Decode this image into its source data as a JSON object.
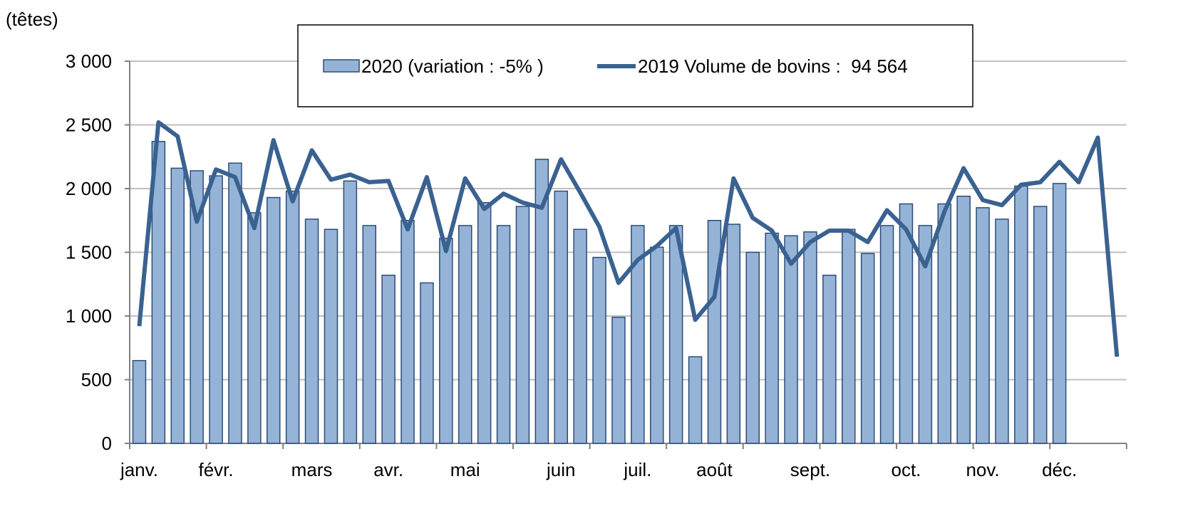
{
  "chart_data": {
    "type": "bar_line",
    "y_label": "(têtes)",
    "categories": [
      "janv.",
      null,
      null,
      null,
      "févr.",
      null,
      null,
      null,
      null,
      "mars",
      null,
      null,
      null,
      "avr.",
      null,
      null,
      null,
      "mai",
      null,
      null,
      null,
      null,
      "juin",
      null,
      null,
      null,
      "juil.",
      null,
      null,
      null,
      "août",
      null,
      null,
      null,
      null,
      "sept.",
      null,
      null,
      null,
      null,
      "oct.",
      null,
      null,
      null,
      "nov.",
      null,
      null,
      null,
      "déc.",
      null,
      null,
      null
    ],
    "series": [
      {
        "name": "2020 (variation : -5% )",
        "type": "bar",
        "color": "#95b3d7",
        "edge": "#2b4d77",
        "values": [
          650,
          2370,
          2160,
          2140,
          2100,
          2200,
          1810,
          1930,
          1980,
          1760,
          1680,
          2060,
          1710,
          1320,
          1750,
          1260,
          1610,
          1710,
          1890,
          1710,
          1860,
          2230,
          1980,
          1680,
          1460,
          990,
          1710,
          1540,
          1710,
          680,
          1750,
          1720,
          1500,
          1650,
          1630,
          1660,
          1320,
          1680,
          1490,
          1710,
          1880,
          1710,
          1880,
          1940,
          1850,
          1760,
          2020,
          1860,
          2040,
          null,
          null,
          null
        ]
      },
      {
        "name": "2019 Volume de bovins :  94 564",
        "type": "line",
        "color": "#3a6291",
        "values": [
          920,
          2520,
          2410,
          1740,
          2150,
          2090,
          1690,
          2380,
          1900,
          2300,
          2070,
          2110,
          2050,
          2060,
          1680,
          2090,
          1510,
          2080,
          1840,
          1960,
          1890,
          1850,
          2230,
          1970,
          1700,
          1260,
          1440,
          1550,
          1690,
          970,
          1150,
          2080,
          1770,
          1670,
          1410,
          1580,
          1670,
          1670,
          1580,
          1830,
          1680,
          1390,
          1820,
          2160,
          1910,
          1870,
          2030,
          2050,
          2210,
          2050,
          2400,
          680
        ]
      }
    ],
    "ylim": [
      0,
      3000
    ],
    "yticks": [
      0,
      500,
      {
        "value": 1000,
        "label": "1 000"
      },
      {
        "value": 1500,
        "label": "1 500"
      },
      {
        "value": 2000,
        "label": "2 000"
      },
      {
        "value": 2500,
        "label": "2 500"
      },
      {
        "value": 3000,
        "label": "3 000"
      }
    ],
    "grid": true,
    "legend": "top"
  }
}
